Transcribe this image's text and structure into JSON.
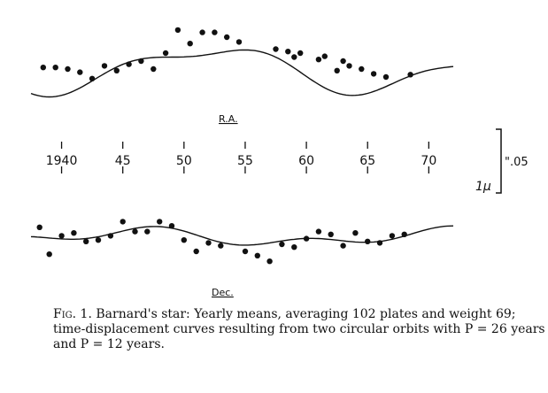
{
  "chart_data": {
    "type": "scatter",
    "panels": [
      {
        "label": "R.A.",
        "points": [
          {
            "x": 1938.5,
            "y": 0.2
          },
          {
            "x": 1939.5,
            "y": 0.2
          },
          {
            "x": 1940.5,
            "y": 0.0
          },
          {
            "x": 1941.5,
            "y": -0.4
          },
          {
            "x": 1942.5,
            "y": -1.2
          },
          {
            "x": 1943.5,
            "y": 0.4
          },
          {
            "x": 1944.5,
            "y": -0.2
          },
          {
            "x": 1945.5,
            "y": 0.6
          },
          {
            "x": 1946.5,
            "y": 1.0
          },
          {
            "x": 1947.5,
            "y": 0.0
          },
          {
            "x": 1948.5,
            "y": 2.0
          },
          {
            "x": 1949.5,
            "y": 4.9
          },
          {
            "x": 1950.5,
            "y": 3.2
          },
          {
            "x": 1951.5,
            "y": 4.6
          },
          {
            "x": 1952.5,
            "y": 4.6
          },
          {
            "x": 1953.5,
            "y": 4.0
          },
          {
            "x": 1954.5,
            "y": 3.4
          },
          {
            "x": 1957.5,
            "y": 2.5
          },
          {
            "x": 1958.5,
            "y": 2.2
          },
          {
            "x": 1959.5,
            "y": 2.0
          },
          {
            "x": 1961.5,
            "y": 1.6
          },
          {
            "x": 1962.5,
            "y": -0.2
          },
          {
            "x": 1963.5,
            "y": 0.4
          },
          {
            "x": 1964.5,
            "y": 0.0
          },
          {
            "x": 1965.5,
            "y": -0.6
          },
          {
            "x": 1966.5,
            "y": -1.0
          },
          {
            "x": 1968.5,
            "y": -0.7
          },
          {
            "x": 1959.0,
            "y": 1.5
          },
          {
            "x": 1961.0,
            "y": 1.2
          },
          {
            "x": 1963.0,
            "y": 1.0
          }
        ]
      },
      {
        "label": "Dec.",
        "points": [
          {
            "x": 1938.2,
            "y": 1.4
          },
          {
            "x": 1939.0,
            "y": -2.4
          },
          {
            "x": 1940.0,
            "y": 0.2
          },
          {
            "x": 1941.0,
            "y": 0.6
          },
          {
            "x": 1942.0,
            "y": -0.6
          },
          {
            "x": 1943.0,
            "y": -0.4
          },
          {
            "x": 1944.0,
            "y": 0.2
          },
          {
            "x": 1945.0,
            "y": 2.2
          },
          {
            "x": 1946.0,
            "y": 0.8
          },
          {
            "x": 1947.0,
            "y": 0.8
          },
          {
            "x": 1948.0,
            "y": 2.2
          },
          {
            "x": 1949.0,
            "y": 1.6
          },
          {
            "x": 1950.0,
            "y": -0.4
          },
          {
            "x": 1951.0,
            "y": -2.0
          },
          {
            "x": 1952.0,
            "y": -0.8
          },
          {
            "x": 1953.0,
            "y": -1.2
          },
          {
            "x": 1955.0,
            "y": -2.0
          },
          {
            "x": 1956.0,
            "y": -2.6
          },
          {
            "x": 1957.0,
            "y": -3.4
          },
          {
            "x": 1958.0,
            "y": -1.0
          },
          {
            "x": 1959.0,
            "y": -1.4
          },
          {
            "x": 1960.0,
            "y": -0.2
          },
          {
            "x": 1961.0,
            "y": 0.8
          },
          {
            "x": 1962.0,
            "y": 0.4
          },
          {
            "x": 1963.0,
            "y": -1.2
          },
          {
            "x": 1964.0,
            "y": 0.6
          },
          {
            "x": 1965.0,
            "y": -0.6
          },
          {
            "x": 1966.0,
            "y": -0.8
          },
          {
            "x": 1967.0,
            "y": 0.2
          },
          {
            "x": 1968.0,
            "y": 0.4
          }
        ]
      }
    ],
    "x_ticks": [
      "1940",
      "45",
      "50",
      "55",
      "60",
      "65",
      "70"
    ],
    "xlim": [
      1937.5,
      1972
    ],
    "ylim": [
      -5,
      5
    ],
    "scale_bar": {
      "value_label": "\".05",
      "unit_label": "1μ"
    },
    "grid": false,
    "legend": "none"
  },
  "caption": {
    "fig_label": "Fig. 1.",
    "text": " Barnard's star: Yearly means, averaging 102 plates and weight 69; time-displacement curves resulting from two circular orbits with P = 26 years and P = 12 years."
  }
}
